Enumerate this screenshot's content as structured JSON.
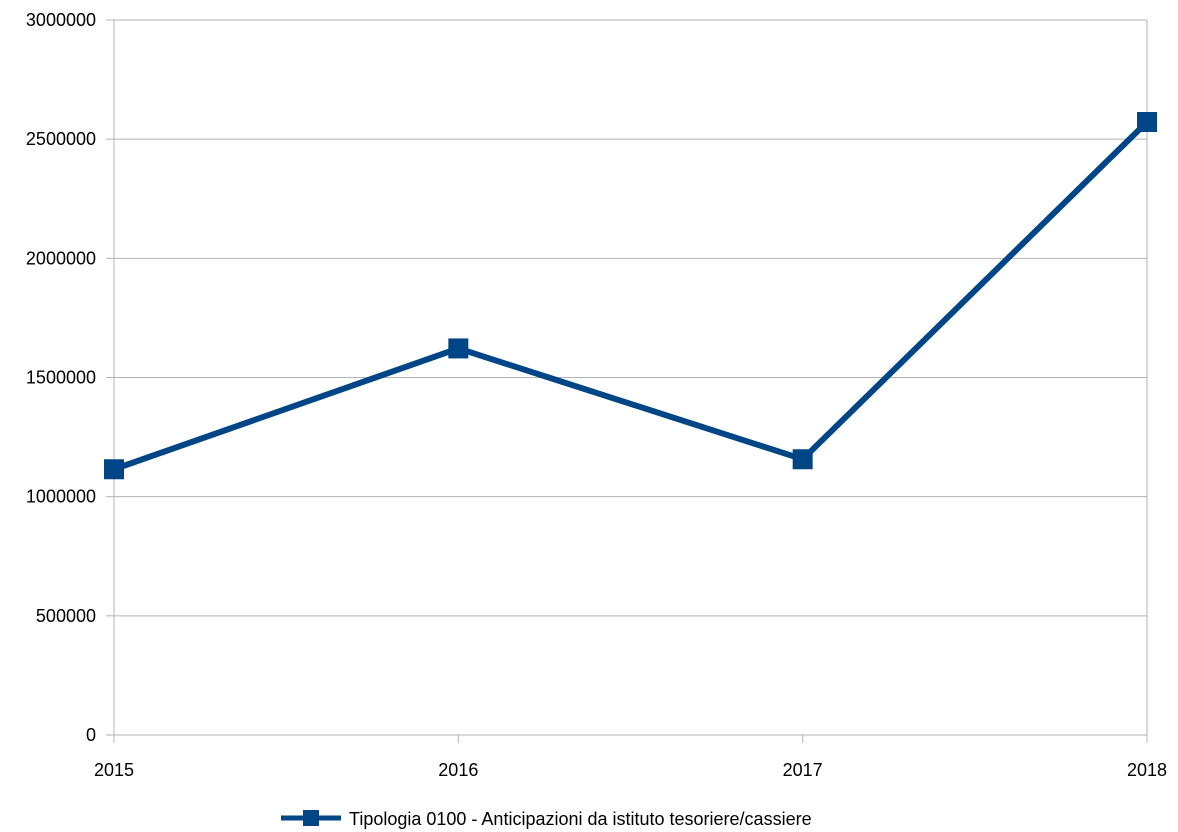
{
  "chart_data": {
    "type": "line",
    "categories": [
      "2015",
      "2016",
      "2017",
      "2018"
    ],
    "series": [
      {
        "name": "Tipologia 0100 - Anticipazioni da istituto tesoriere/cassiere",
        "values": [
          1115000,
          1622000,
          1157000,
          2572000
        ],
        "color": "#004586"
      }
    ],
    "y_ticks": [
      "0",
      "500000",
      "1000000",
      "1500000",
      "2000000",
      "2500000",
      "3000000"
    ],
    "ylim": [
      0,
      3000000
    ],
    "grid": true,
    "legend_position": "bottom-center"
  }
}
